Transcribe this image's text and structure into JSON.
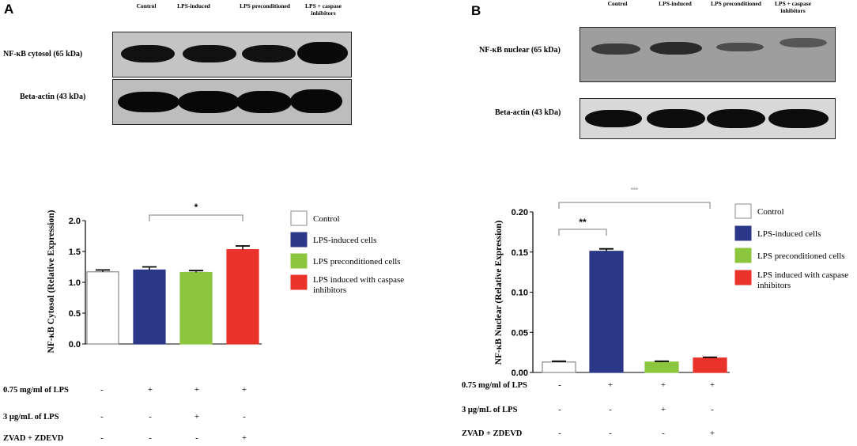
{
  "panels": [
    {
      "letter": "A",
      "lanes": [
        "Control",
        "LPS-induced",
        "LPS preconditioned",
        "LPS + caspase inhibitors"
      ],
      "blots": [
        {
          "label": "NF-κB cytosol (65 kDa)"
        },
        {
          "label": "Beta-actin (43 kDa)"
        }
      ],
      "significance": "*"
    },
    {
      "letter": "B",
      "lanes": [
        "Control",
        "LPS-induced",
        "LPS preconditioned",
        "LPS + caspase inhibitors"
      ],
      "blots": [
        {
          "label": "NF-κB nuclear (65 kDa)"
        },
        {
          "label": "Beta-actin (43 kDa)"
        }
      ],
      "significance": [
        "**",
        "***"
      ]
    }
  ],
  "chart_data": [
    {
      "type": "bar",
      "categories": [
        "Control",
        "LPS-induced cells",
        "LPS preconditioned cells",
        "LPS induced with caspase inhibitors"
      ],
      "values": [
        1.17,
        1.2,
        1.16,
        1.53
      ],
      "errors": [
        0.03,
        0.05,
        0.03,
        0.06
      ],
      "colors": [
        "#ffffff",
        "#2b3787",
        "#8cc63f",
        "#e8322a"
      ],
      "ylabel": "NF-κB Cytosol (Relative Expression)",
      "ylim": [
        0,
        2.0
      ],
      "yticks": [
        "0.0",
        "0.5",
        "1.0",
        "1.5",
        "2.0"
      ],
      "annotations": [
        {
          "text": "*",
          "from": 1,
          "to": 3
        }
      ],
      "legend": [
        "Control",
        "LPS-induced cells",
        "LPS preconditioned cells",
        "LPS induced with caspase inhibitors"
      ]
    },
    {
      "type": "bar",
      "categories": [
        "Control",
        "LPS-induced cells",
        "LPS preconditioned cells",
        "LPS induced with caspase inhibitors"
      ],
      "values": [
        0.013,
        0.151,
        0.013,
        0.018
      ],
      "errors": [
        0.001,
        0.003,
        0.001,
        0.001
      ],
      "colors": [
        "#ffffff",
        "#2b3787",
        "#8cc63f",
        "#e8322a"
      ],
      "ylabel": "NF-κB Nuclear (Relative Expression)",
      "ylim": [
        0,
        0.2
      ],
      "yticks": [
        "0.00",
        "0.05",
        "0.10",
        "0.15",
        "0.20"
      ],
      "annotations": [
        {
          "text": "**",
          "from": 0,
          "to": 1
        },
        {
          "text": "***",
          "from": 0,
          "to": 3
        }
      ],
      "legend": [
        "Control",
        "LPS-induced cells",
        "LPS preconditioned cells",
        "LPS induced with caspase inhibitors"
      ]
    }
  ],
  "conditions": {
    "rows": [
      {
        "label": "0.75 mg/ml of LPS",
        "values": [
          "-",
          "+",
          "+",
          "+"
        ]
      },
      {
        "label": "3 μg/mL of LPS",
        "values": [
          "-",
          "-",
          "+",
          "-"
        ]
      },
      {
        "label": "ZVAD + ZDEVD",
        "values": [
          "-",
          "-",
          "-",
          "+"
        ]
      }
    ]
  }
}
